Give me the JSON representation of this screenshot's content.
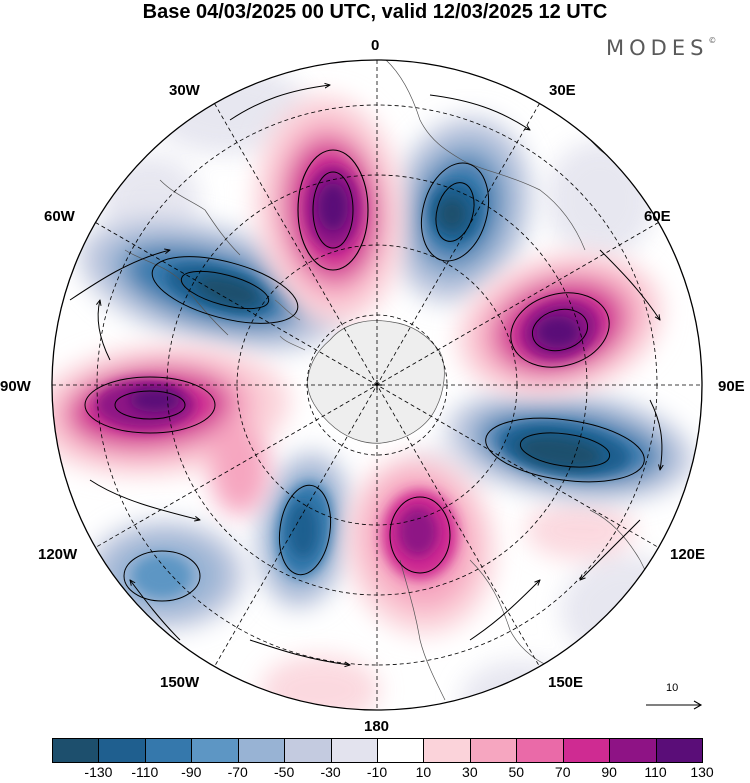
{
  "title": "Base 04/03/2025 00 UTC, valid 12/03/2025 12 UTC",
  "logo": {
    "text": "MODES",
    "mark": "©"
  },
  "longitude_labels": [
    {
      "key": "0",
      "text": "0"
    },
    {
      "key": "30E",
      "text": "30E"
    },
    {
      "key": "60E",
      "text": "60E"
    },
    {
      "key": "90E",
      "text": "90E"
    },
    {
      "key": "120E",
      "text": "120E"
    },
    {
      "key": "150E",
      "text": "150E"
    },
    {
      "key": "180",
      "text": "180"
    },
    {
      "key": "150W",
      "text": "150W"
    },
    {
      "key": "120W",
      "text": "120W"
    },
    {
      "key": "90W",
      "text": "90W"
    },
    {
      "key": "60W",
      "text": "60W"
    },
    {
      "key": "30W",
      "text": "30W"
    }
  ],
  "reference_vector": {
    "label": "10"
  },
  "colorbar": {
    "tick_labels": [
      "-130",
      "-110",
      "-90",
      "-70",
      "-50",
      "-30",
      "-10",
      "10",
      "30",
      "50",
      "70",
      "90",
      "110",
      "130"
    ],
    "colors": [
      "#1d4f6d",
      "#1f5f8f",
      "#3578ac",
      "#5d96c4",
      "#98b3d4",
      "#c4cbe0",
      "#e3e3ee",
      "#ffffff",
      "#fbd3da",
      "#f6a6c0",
      "#ea6aa8",
      "#cf2b92",
      "#8e1385",
      "#5a0d78"
    ]
  },
  "anomaly_centers": [
    {
      "name": "neg-30E",
      "value": -110
    },
    {
      "name": "neg-60W",
      "value": -110
    },
    {
      "name": "neg-100E",
      "value": -130
    },
    {
      "name": "neg-150W",
      "value": -90
    },
    {
      "name": "neg-120W",
      "value": -70
    },
    {
      "name": "pos-0",
      "value": 130
    },
    {
      "name": "pos-65E",
      "value": 130
    },
    {
      "name": "pos-90W",
      "value": 130
    },
    {
      "name": "pos-170E",
      "value": 110
    }
  ],
  "icons": {
    "pole": "cross",
    "grid": "dashed-graticule"
  }
}
